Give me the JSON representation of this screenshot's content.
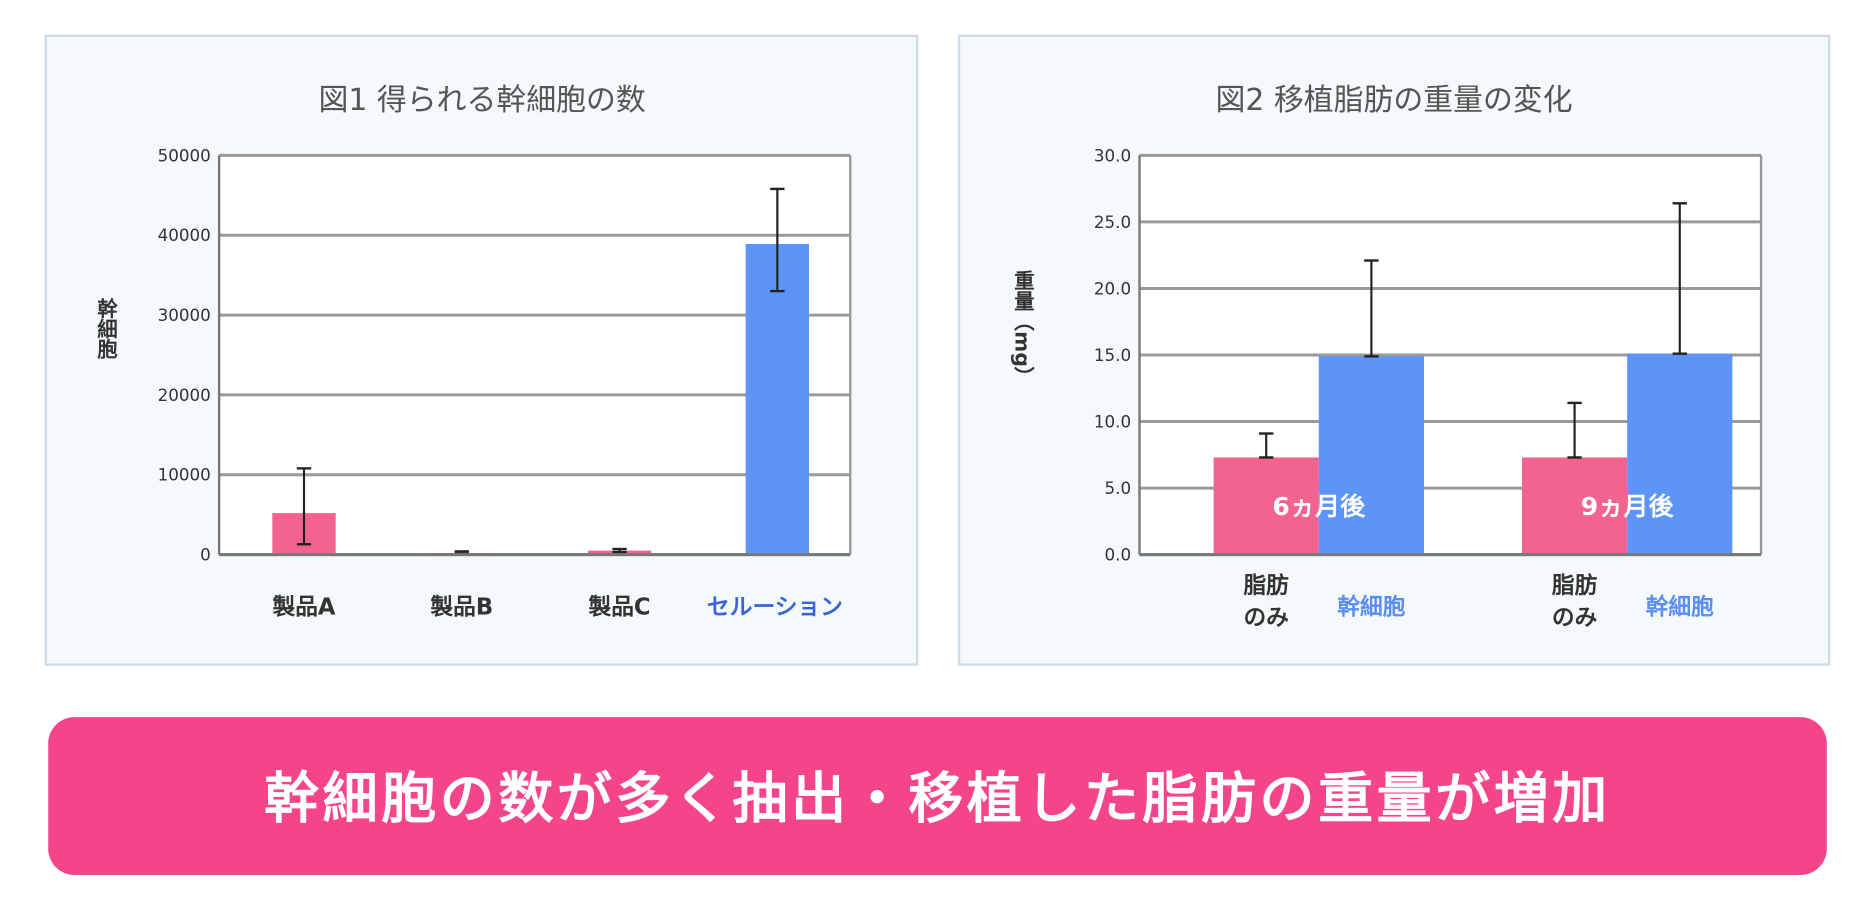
{
  "colors": {
    "pink": "#f2638f",
    "blue": "#5c95f6",
    "banner": "#f5458a",
    "label_blue": "#3b63d6",
    "grid": "#9a9a9a",
    "panel_bg": "#f4f9fc",
    "panel_border": "#cddde3"
  },
  "chart_data": [
    {
      "type": "bar",
      "title": "図1 得られる幹細胞の数",
      "ylabel": "幹細胞",
      "xlabel": "",
      "ylim": [
        0,
        50000
      ],
      "yticks": [
        "0",
        "10000",
        "20000",
        "30000",
        "40000",
        "50000"
      ],
      "categories": [
        "製品A",
        "製品B",
        "製品C",
        "セルーション"
      ],
      "values": [
        5200,
        200,
        500,
        38900
      ],
      "error_low": [
        1300,
        100,
        300,
        33000
      ],
      "error_high": [
        10800,
        400,
        700,
        45800
      ],
      "bar_colors": [
        "pink",
        "pink",
        "pink",
        "blue"
      ],
      "label_colors": [
        "#333333",
        "#333333",
        "#333333",
        "#3b63d6"
      ],
      "grid": true
    },
    {
      "type": "bar",
      "title": "図2 移植脂肪の重量の変化",
      "ylabel": "重量（mg）",
      "ylim": [
        0,
        30
      ],
      "yticks": [
        "0.0",
        "5.0",
        "10.0",
        "15.0",
        "20.0",
        "25.0",
        "30.0"
      ],
      "groups": [
        {
          "label": "6ヵ月後",
          "bars": [
            {
              "name": "脂肪のみ",
              "name_lines": [
                "脂肪",
                "のみ"
              ],
              "value": 7.3,
              "error_high": 9.1
            },
            {
              "name": "幹細胞",
              "name_lines": [
                "幹細胞"
              ],
              "value": 14.9,
              "error_high": 22.1
            }
          ]
        },
        {
          "label": "9ヵ月後",
          "bars": [
            {
              "name": "脂肪のみ",
              "name_lines": [
                "脂肪",
                "のみ"
              ],
              "value": 7.3,
              "error_high": 11.4
            },
            {
              "name": "幹細胞",
              "name_lines": [
                "幹細胞"
              ],
              "value": 15.1,
              "error_high": 26.4
            }
          ]
        }
      ],
      "grid": true
    }
  ],
  "banner": {
    "text": "幹細胞の数が多く抽出・移植した脂肪の重量が増加"
  }
}
